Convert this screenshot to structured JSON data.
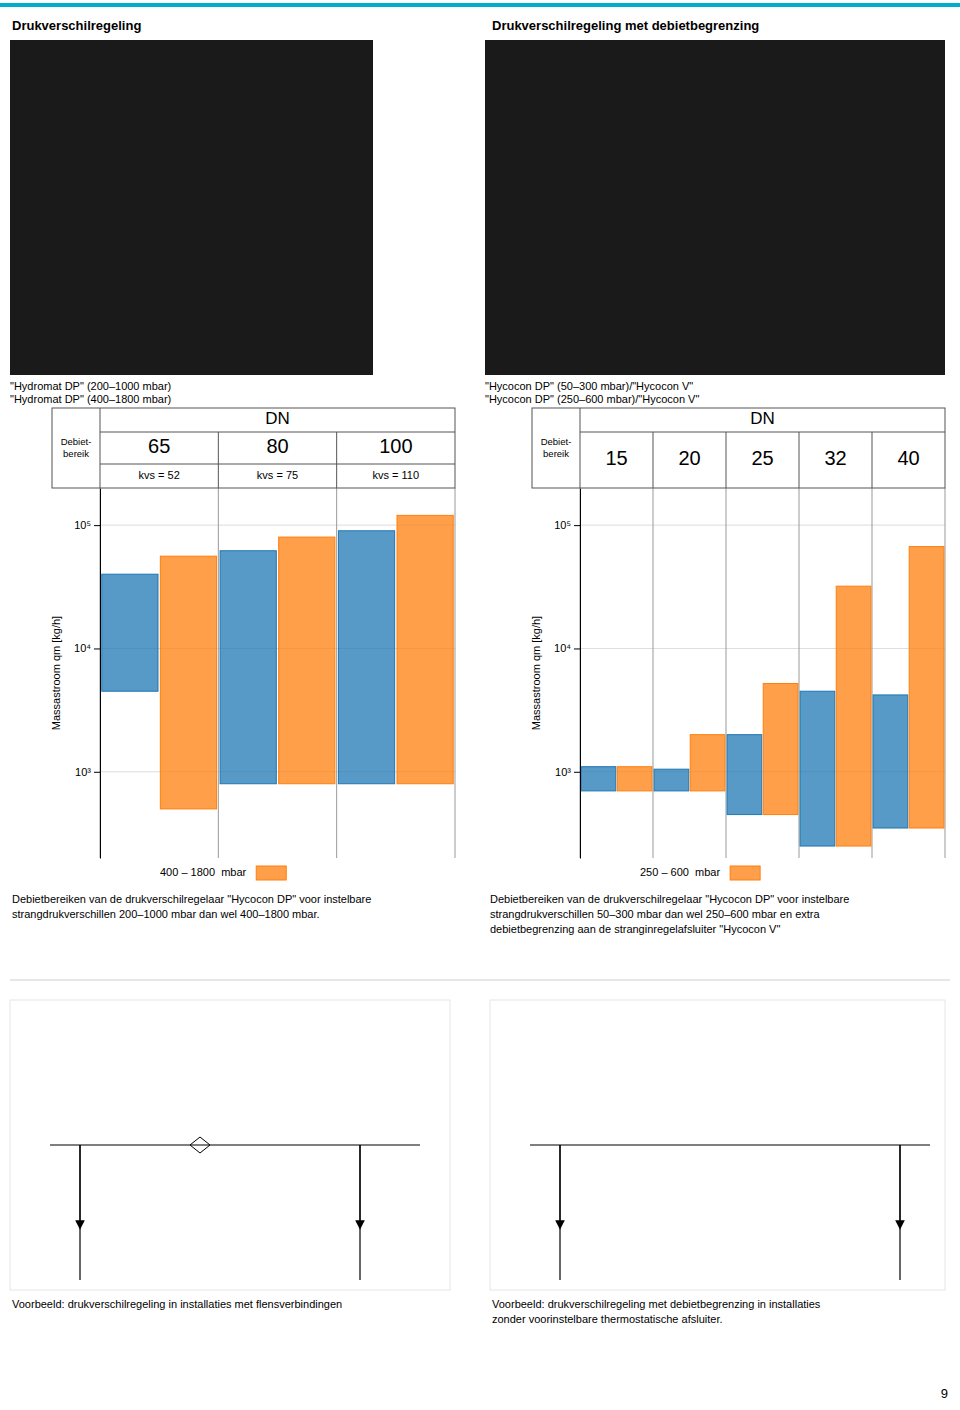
{
  "page_title_left": "Drukverschilregeling",
  "page_title_right": "Drukverschilregeling met debietbegrenzing",
  "header_line_color": "#00AECC",
  "image_captions_left": [
    "\"Hydromat DP\" (200–1000 mbar)",
    "\"Hydromat DP\" (400–1800 mbar)"
  ],
  "image_captions_right": [
    "\"Hycocon DP\" (50–300 mbar)/\"Hycocon V\"",
    "\"Hycocon DP\" (250–600 mbar)/\"Hycocon V\""
  ],
  "footer_left": "Voorbeeld: drukverschilregeling in installaties met flensverbindingen",
  "footer_right": "Voorbeeld: drukverschilregeling met debietbegrenzing in installaties\nzonder voorinstelbare thermostatische afsluiter.",
  "page_number": "9",
  "chart_data": [
    {
      "type": "bar",
      "title": "DN",
      "xlabel": "Debiet-\nbereik",
      "categories": [
        "65",
        "80",
        "100"
      ],
      "annotations": [
        "kvs = 52",
        "kvs = 75",
        "kvs = 110"
      ],
      "ylabel": "Massastroom qm [kg/h]",
      "log": "y",
      "ylim": [
        200,
        200000
      ],
      "yticks": [
        {
          "value": 1000,
          "label": "10³"
        },
        {
          "value": 10000,
          "label": "10⁴"
        },
        {
          "value": 100000,
          "label": "10⁵"
        }
      ],
      "grid": true,
      "tick_labels": "y",
      "legend": "bottom",
      "series": [
        {
          "base": [
            4500,
            800,
            800
          ],
          "values": [
            40000,
            62000,
            90000
          ]
        },
        {
          "name": "400 – 1800  mbar",
          "base": [
            500,
            800,
            800
          ],
          "values": [
            56000,
            80000,
            120000
          ]
        }
      ],
      "caption": "Debietbereiken van de drukverschilregelaar \"Hycocon DP\" voor instelbare\nstrangdrukverschillen 200–1000 mbar dan wel 400–1800 mbar."
    },
    {
      "type": "bar",
      "title": "DN",
      "xlabel": "Debiet-\nbereik",
      "categories": [
        "15",
        "20",
        "25",
        "32",
        "40"
      ],
      "ylabel": "Massastroom qm [kg/h]",
      "log": "y",
      "ylim": [
        200,
        200000
      ],
      "yticks": [
        {
          "value": 1000,
          "label": "10³"
        },
        {
          "value": 10000,
          "label": "10⁴"
        },
        {
          "value": 100000,
          "label": "10⁵"
        }
      ],
      "grid": true,
      "tick_labels": "y",
      "legend": "bottom",
      "series": [
        {
          "base": [
            700,
            700,
            450,
            250,
            350
          ],
          "values": [
            1100,
            1050,
            2000,
            4500,
            4200
          ]
        },
        {
          "name": "250 – 600  mbar",
          "base": [
            700,
            700,
            450,
            250,
            350
          ],
          "values": [
            1100,
            2000,
            5200,
            32000,
            67000
          ]
        }
      ],
      "caption": "Debietbereiken van de drukverschilregelaar \"Hycocon DP\" voor instelbare\nstrangdrukverschillen 50–300 mbar dan wel 250–600 mbar en extra\ndebietbegrenzing aan de stranginregelafsluiter \"Hycocon V\""
    }
  ]
}
